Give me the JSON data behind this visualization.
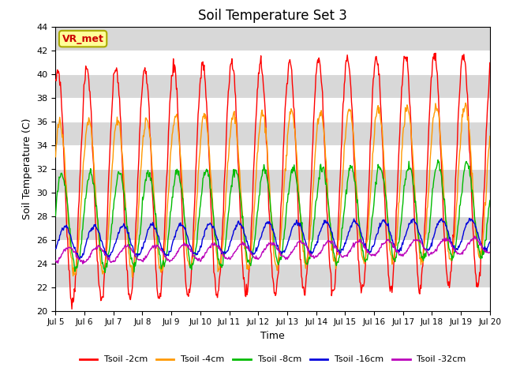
{
  "title": "Soil Temperature Set 3",
  "xlabel": "Time",
  "ylabel": "Soil Temperature (C)",
  "ylim": [
    20,
    44
  ],
  "yticks": [
    20,
    22,
    24,
    26,
    28,
    30,
    32,
    34,
    36,
    38,
    40,
    42,
    44
  ],
  "xtick_labels": [
    "Jul 5",
    "Jul 6",
    "Jul 7",
    "Jul 8",
    "Jul 9",
    "Jul 10",
    "Jul 11",
    "Jul 12",
    "Jul 13",
    "Jul 14",
    "Jul 15",
    "Jul 16",
    "Jul 17",
    "Jul 18",
    "Jul 19",
    "Jul 20"
  ],
  "colors": {
    "2cm": "#ff0000",
    "4cm": "#ff9900",
    "8cm": "#00bb00",
    "16cm": "#0000dd",
    "32cm": "#bb00bb"
  },
  "legend_labels": [
    "Tsoil -2cm",
    "Tsoil -4cm",
    "Tsoil -8cm",
    "Tsoil -16cm",
    "Tsoil -32cm"
  ],
  "annotation_text": "VR_met",
  "annotation_color": "#cc0000",
  "annotation_bg": "#ffff99",
  "bg_color": "#d8d8d8",
  "grid_color": "#ffffff",
  "title_fontsize": 12
}
